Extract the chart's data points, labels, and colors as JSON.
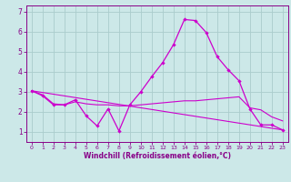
{
  "background_color": "#cce8e8",
  "line_color": "#cc00cc",
  "grid_color": "#aacccc",
  "xlabel": "Windchill (Refroidissement éolien,°C)",
  "xlabel_color": "#880088",
  "tick_color": "#880088",
  "xlim": [
    -0.5,
    23.5
  ],
  "ylim": [
    0.5,
    7.3
  ],
  "yticks": [
    1,
    2,
    3,
    4,
    5,
    6,
    7
  ],
  "xticks": [
    0,
    1,
    2,
    3,
    4,
    5,
    6,
    7,
    8,
    9,
    10,
    11,
    12,
    13,
    14,
    15,
    16,
    17,
    18,
    19,
    20,
    21,
    22,
    23
  ],
  "series_main": {
    "x": [
      0,
      1,
      2,
      3,
      4,
      5,
      6,
      7,
      8,
      9,
      10,
      11,
      12,
      13,
      14,
      15,
      16,
      17,
      18,
      19,
      20,
      21,
      22,
      23
    ],
    "y": [
      3.05,
      2.8,
      2.35,
      2.35,
      2.6,
      1.8,
      1.3,
      2.15,
      1.05,
      2.35,
      3.0,
      3.75,
      4.45,
      5.35,
      6.6,
      6.55,
      5.95,
      4.75,
      4.1,
      3.55,
      2.15,
      1.35,
      1.35,
      1.1
    ]
  },
  "series_trend": {
    "x": [
      0,
      1,
      2,
      3,
      4,
      5,
      6,
      7,
      8,
      9,
      10,
      11,
      12,
      13,
      14,
      15,
      16,
      17,
      18,
      19,
      20,
      21,
      22,
      23
    ],
    "y": [
      3.05,
      2.85,
      2.4,
      2.35,
      2.5,
      2.4,
      2.35,
      2.35,
      2.3,
      2.3,
      2.35,
      2.4,
      2.45,
      2.5,
      2.55,
      2.55,
      2.6,
      2.65,
      2.7,
      2.75,
      2.2,
      2.1,
      1.75,
      1.55
    ]
  },
  "series_line": {
    "x": [
      0,
      23
    ],
    "y": [
      3.05,
      1.1
    ]
  },
  "figsize": [
    3.2,
    2.0
  ],
  "dpi": 100
}
